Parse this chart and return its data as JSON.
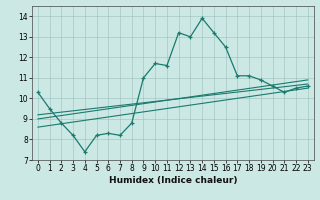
{
  "xlabel": "Humidex (Indice chaleur)",
  "background_color": "#cce8e4",
  "line_color": "#1a7a6e",
  "xlim": [
    -0.5,
    23.5
  ],
  "ylim": [
    7,
    14.5
  ],
  "yticks": [
    7,
    8,
    9,
    10,
    11,
    12,
    13,
    14
  ],
  "xticks": [
    0,
    1,
    2,
    3,
    4,
    5,
    6,
    7,
    8,
    9,
    10,
    11,
    12,
    13,
    14,
    15,
    16,
    17,
    18,
    19,
    20,
    21,
    22,
    23
  ],
  "main_x": [
    0,
    1,
    2,
    3,
    4,
    5,
    6,
    7,
    8,
    9,
    10,
    11,
    12,
    13,
    14,
    15,
    16,
    17,
    18,
    19,
    20,
    21,
    22,
    23
  ],
  "main_y": [
    10.3,
    9.5,
    8.8,
    8.2,
    7.4,
    8.2,
    8.3,
    8.2,
    8.8,
    11.0,
    11.7,
    11.6,
    13.2,
    13.0,
    13.9,
    13.2,
    12.5,
    11.1,
    11.1,
    10.9,
    10.6,
    10.3,
    10.5,
    10.6
  ],
  "line1_x": [
    0,
    23
  ],
  "line1_y": [
    9.2,
    10.7
  ],
  "line2_x": [
    0,
    23
  ],
  "line2_y": [
    9.0,
    10.9
  ],
  "line3_x": [
    0,
    23
  ],
  "line3_y": [
    8.6,
    10.5
  ],
  "grid_color": "#9bbfbb",
  "grid_alpha": 0.8
}
